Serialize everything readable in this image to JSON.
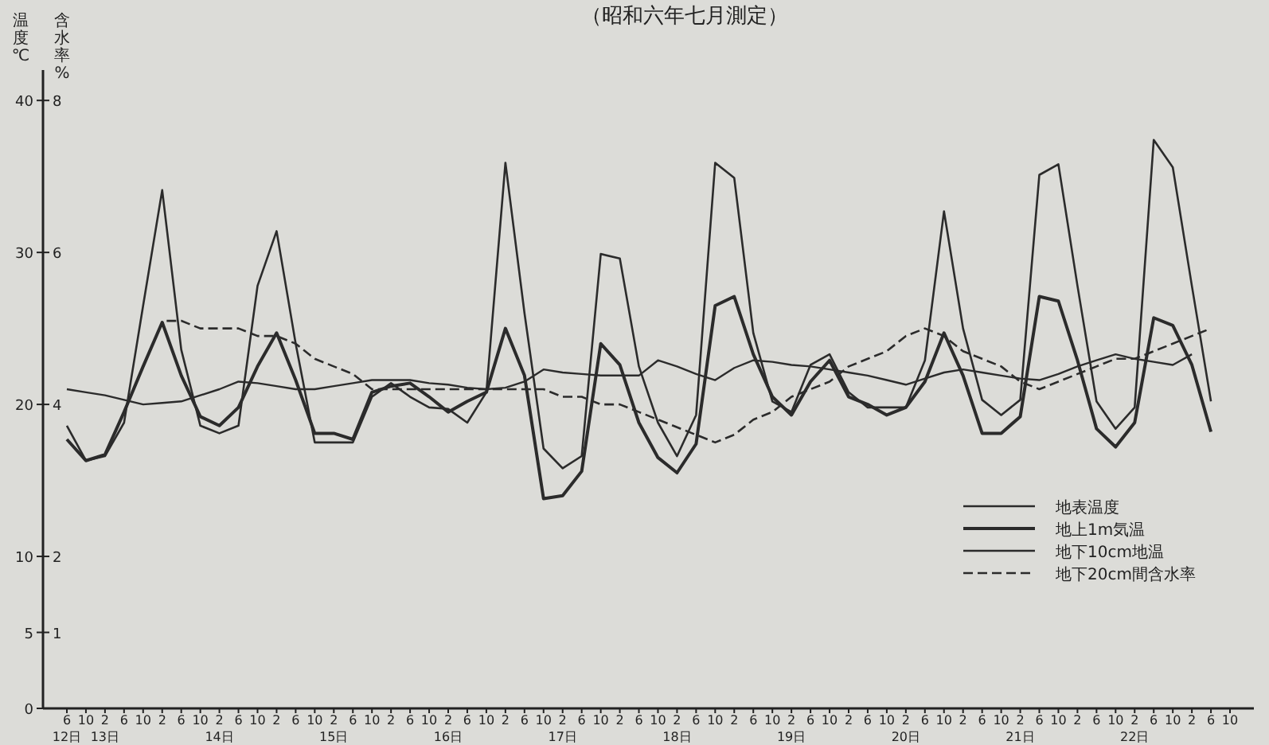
{
  "chart_data": {
    "type": "line",
    "title": "（昭和六年七月測定）",
    "ylabel": "温度℃",
    "y2label": "含水率%",
    "categories": [
      "6\n12日",
      "10",
      "2\n13日",
      "6",
      "10",
      "2",
      "6",
      "10",
      "2\n14日",
      "6",
      "10",
      "2",
      "6",
      "10",
      "2\n15日",
      "6",
      "10",
      "2",
      "6",
      "10",
      "2\n16日",
      "6",
      "10",
      "2",
      "6",
      "10",
      "2\n17日",
      "6",
      "10",
      "2",
      "6",
      "10",
      "2\n18日",
      "6",
      "10",
      "2",
      "6",
      "10",
      "2\n19日",
      "6",
      "10",
      "2",
      "6",
      "10",
      "2\n20日",
      "6",
      "10",
      "2",
      "6",
      "10",
      "2\n21日",
      "6",
      "10",
      "2",
      "6",
      "10",
      "2\n22日",
      "6",
      "10",
      "2",
      "6",
      "10"
    ],
    "ylim": [
      0,
      42
    ],
    "y2lim": [
      0,
      8.4
    ],
    "yticks": [
      0,
      5,
      10,
      20,
      30,
      40
    ],
    "y2ticks": [
      1,
      2,
      4,
      6,
      8
    ],
    "legend": "bottom right",
    "series": [
      {
        "name": "地表温度",
        "color": "#2b2b2b",
        "line_style": "solid",
        "values": [
          18.6,
          16.3,
          16.6,
          18.8,
          26.5,
          34.1,
          23.6,
          18.6,
          18.1,
          18.6,
          27.8,
          31.4,
          24.0,
          17.5,
          17.5,
          17.5,
          20.5,
          21.4,
          20.5,
          19.8,
          19.7,
          18.8,
          20.8,
          35.9,
          26.0,
          17.1,
          15.8,
          16.6,
          29.9,
          29.6,
          22.5,
          18.8,
          16.6,
          19.3,
          35.9,
          34.9,
          24.7,
          20.2,
          19.5,
          22.6,
          23.3,
          20.8,
          19.8,
          19.8,
          19.8,
          22.9,
          32.7,
          25.0,
          20.3,
          19.3,
          20.3,
          35.1,
          35.8,
          27.8,
          20.2,
          18.4,
          19.8,
          37.4,
          35.6,
          27.8,
          20.2,
          null
        ]
      },
      {
        "name": "地上1m気温",
        "color": "#2b2b2b",
        "line_style": "solid",
        "values": [
          17.7,
          16.3,
          16.7,
          19.5,
          22.5,
          25.4,
          21.9,
          19.2,
          18.6,
          19.8,
          22.5,
          24.7,
          21.6,
          18.1,
          18.1,
          17.7,
          20.8,
          21.2,
          21.4,
          20.5,
          19.5,
          20.2,
          20.8,
          25.0,
          21.9,
          13.8,
          14.0,
          15.6,
          24.0,
          22.6,
          18.8,
          16.5,
          15.5,
          17.4,
          26.5,
          27.1,
          23.3,
          20.5,
          19.3,
          21.5,
          22.9,
          20.5,
          20.0,
          19.3,
          19.8,
          21.5,
          24.7,
          21.9,
          18.1,
          18.1,
          19.2,
          27.1,
          26.8,
          22.9,
          18.4,
          17.2,
          18.8,
          25.7,
          25.2,
          22.6,
          18.2,
          null
        ]
      },
      {
        "name": "地下10cm地温",
        "color": "#2b2b2b",
        "line_style": "solid",
        "values": [
          21.0,
          20.8,
          20.6,
          20.3,
          20.0,
          20.1,
          20.2,
          20.6,
          21.0,
          21.5,
          21.4,
          21.2,
          21.0,
          21.0,
          21.2,
          21.4,
          21.6,
          21.6,
          21.6,
          21.4,
          21.3,
          21.1,
          21.0,
          21.1,
          21.5,
          22.3,
          22.1,
          22.0,
          21.9,
          21.9,
          21.9,
          22.9,
          22.5,
          22.0,
          21.6,
          22.4,
          22.9,
          22.8,
          22.6,
          22.5,
          22.3,
          22.1,
          21.9,
          21.6,
          21.3,
          21.7,
          22.1,
          22.3,
          22.1,
          21.9,
          21.7,
          21.6,
          22.0,
          22.5,
          22.9,
          23.3,
          23.0,
          22.8,
          22.6,
          23.3,
          null,
          null
        ]
      },
      {
        "name": "地下20cm間含水率",
        "color": "#2b2b2b",
        "line_style": "dashed",
        "axis": "y2",
        "values": [
          null,
          null,
          null,
          null,
          null,
          5.1,
          5.1,
          5.0,
          5.0,
          5.0,
          4.9,
          4.9,
          4.8,
          4.6,
          4.5,
          4.4,
          4.2,
          4.2,
          4.2,
          4.2,
          4.2,
          4.2,
          4.2,
          4.2,
          4.2,
          4.2,
          4.1,
          4.1,
          4.0,
          4.0,
          3.9,
          3.8,
          3.7,
          3.6,
          3.5,
          3.6,
          3.8,
          3.9,
          4.1,
          4.2,
          4.3,
          4.5,
          4.6,
          4.7,
          4.9,
          5.0,
          4.9,
          4.7,
          4.6,
          4.5,
          4.3,
          4.2,
          4.3,
          4.4,
          4.5,
          4.6,
          4.6,
          4.7,
          4.8,
          4.9,
          5.0,
          null
        ]
      }
    ]
  }
}
